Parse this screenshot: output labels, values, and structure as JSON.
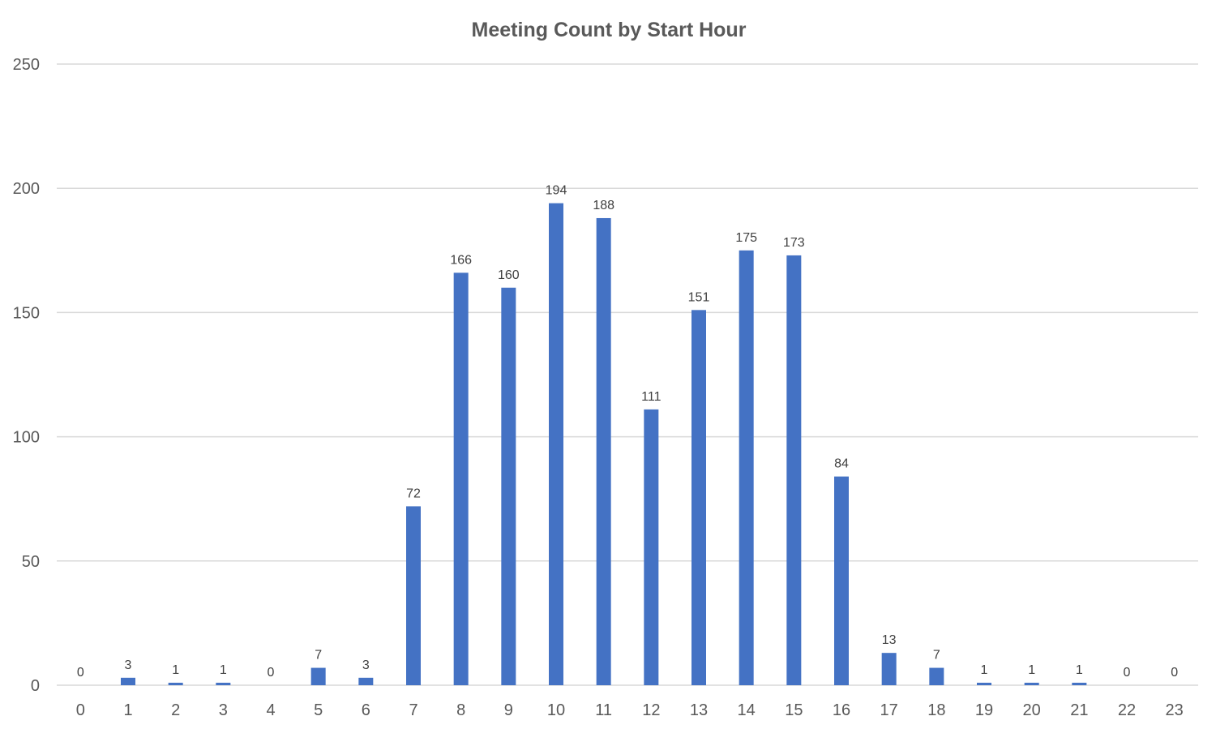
{
  "chart_data": {
    "type": "bar",
    "title": "Meeting Count by Start Hour",
    "xlabel": "",
    "ylabel": "",
    "categories": [
      "0",
      "1",
      "2",
      "3",
      "4",
      "5",
      "6",
      "7",
      "8",
      "9",
      "10",
      "11",
      "12",
      "13",
      "14",
      "15",
      "16",
      "17",
      "18",
      "19",
      "20",
      "21",
      "22",
      "23"
    ],
    "values": [
      0,
      3,
      1,
      1,
      0,
      7,
      3,
      72,
      166,
      160,
      194,
      188,
      111,
      151,
      175,
      173,
      84,
      13,
      7,
      1,
      1,
      1,
      0,
      0
    ],
    "ylim": [
      0,
      250
    ],
    "yticks": [
      0,
      50,
      100,
      150,
      200,
      250
    ],
    "grid": true,
    "legend": "none",
    "bar_color": "#4472c4",
    "data_labels": true
  }
}
